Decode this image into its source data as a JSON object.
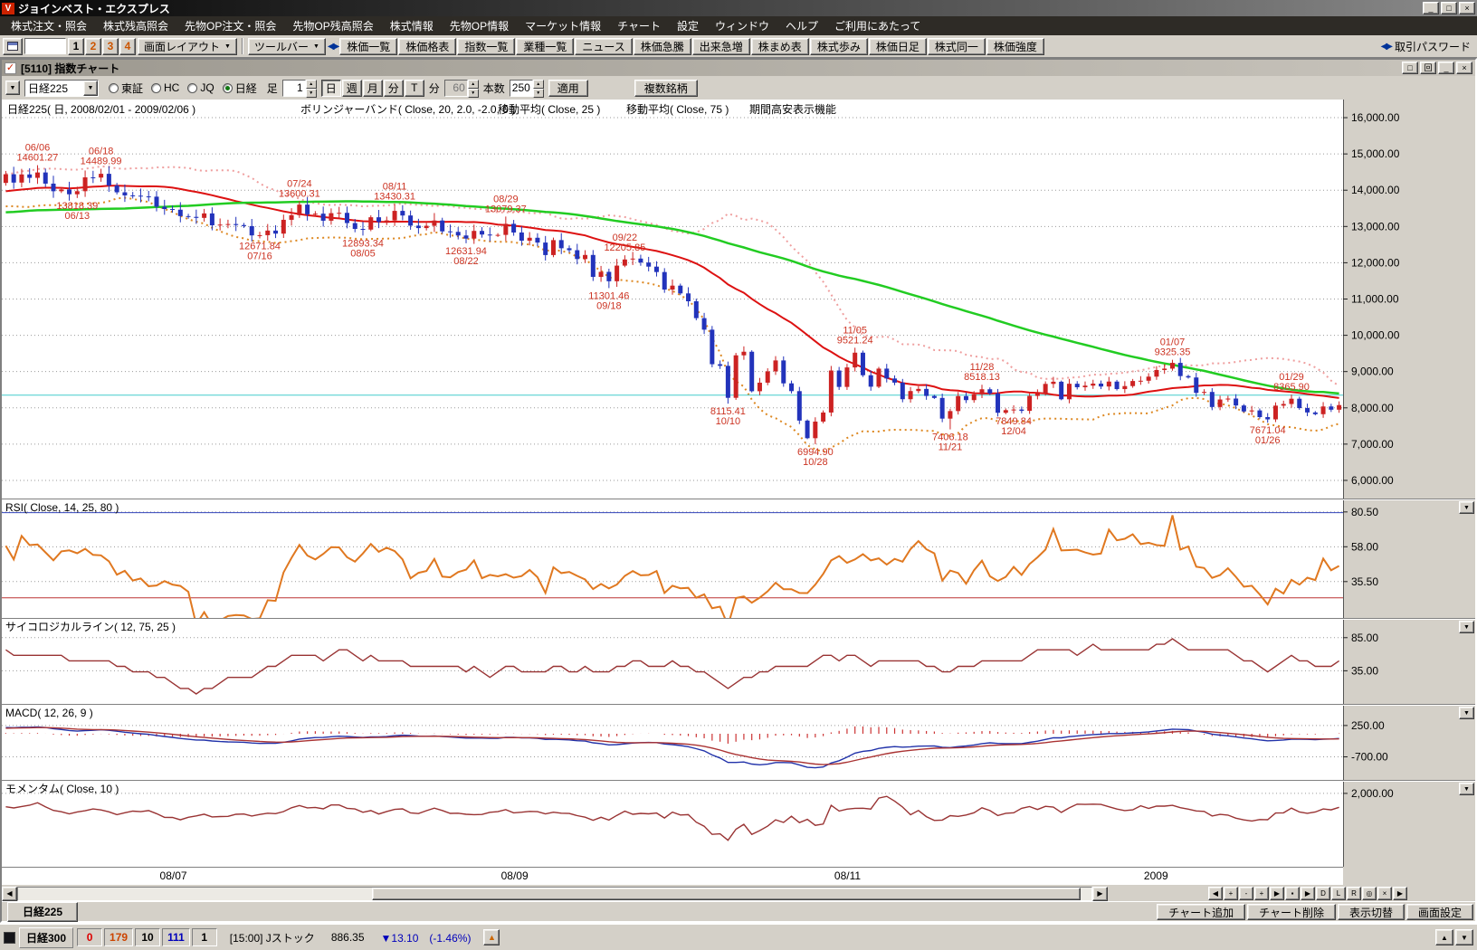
{
  "window": {
    "title": "ジョインベスト・エクスプレス",
    "buttons": [
      {
        "name": "minimize",
        "glyph": "_"
      },
      {
        "name": "maximize",
        "glyph": "□"
      },
      {
        "name": "close",
        "glyph": "×"
      }
    ]
  },
  "menu": {
    "items": [
      "株式注文・照会",
      "株式残高照会",
      "先物OP注文・照会",
      "先物OP残高照会",
      "株式情報",
      "先物OP情報",
      "マーケット情報",
      "チャート",
      "設定",
      "ウィンドウ",
      "ヘルプ",
      "ご利用にあたって"
    ]
  },
  "toolbar": {
    "layout_buttons": [
      {
        "label": "1",
        "color": "#000000"
      },
      {
        "label": "2",
        "color": "#cc5500"
      },
      {
        "label": "3",
        "color": "#cc5500"
      },
      {
        "label": "4",
        "color": "#cc5500"
      }
    ],
    "screen_layout": "画面レイアウト",
    "toolbar_menu": "ツールバー",
    "buttons": [
      {
        "label": "株価一覧",
        "name": "price-list-button"
      },
      {
        "label": "株価格表",
        "name": "price-board-button"
      },
      {
        "label": "指数一覧",
        "name": "index-list-button"
      },
      {
        "label": "業種一覧",
        "name": "sector-list-button"
      },
      {
        "label": "ニュース",
        "name": "news-button"
      },
      {
        "label": "株価急騰",
        "name": "price-surge-button"
      },
      {
        "label": "出来急増",
        "name": "volume-surge-button"
      },
      {
        "label": "株まめ表",
        "name": "stock-memo-button"
      },
      {
        "label": "株式歩み",
        "name": "tick-history-button"
      },
      {
        "label": "株価日足",
        "name": "daily-price-button"
      },
      {
        "label": "株式同一",
        "name": "same-stock-button"
      },
      {
        "label": "株価強度",
        "name": "price-strength-button"
      }
    ],
    "password_button": "取引パスワード"
  },
  "chart_window": {
    "title": "[5110] 指数チャート",
    "title_buttons": [
      {
        "name": "cascade",
        "glyph": "□"
      },
      {
        "name": "restore",
        "glyph": "回"
      },
      {
        "name": "minimize",
        "glyph": "_"
      },
      {
        "name": "close",
        "glyph": "×"
      }
    ],
    "controls": {
      "combo_value": "日経225",
      "markets": [
        {
          "label": "東証",
          "selected": false
        },
        {
          "label": "HC",
          "selected": false
        },
        {
          "label": "JQ",
          "selected": false
        },
        {
          "label": "日経",
          "selected": true
        }
      ],
      "bar_label": "足",
      "bar_value": "1",
      "period_buttons": [
        {
          "label": "日",
          "active": true
        },
        {
          "label": "週",
          "active": false
        },
        {
          "label": "月",
          "active": false
        },
        {
          "label": "分",
          "active": false
        },
        {
          "label": "T",
          "active": false
        }
      ],
      "minute_label": "分",
      "minute_value": "60",
      "count_label": "本数",
      "count_value": "250",
      "apply_button": "適用",
      "multi_button": "複数銘柄"
    },
    "header_items": [
      "日経225( 日, 2008/02/01 - 2009/02/06 )",
      "ボリンジャーバンド( Close, 20, 2.0, -2.0, 0 )",
      "移動平均( Close, 25 )",
      "移動平均( Close, 75 )",
      "期間高安表示機能"
    ],
    "tab": "日経225",
    "footer_buttons": [
      {
        "label": "チャート追加",
        "name": "chart-add-button"
      },
      {
        "label": "チャート削除",
        "name": "chart-delete-button"
      },
      {
        "label": "表示切替",
        "name": "display-toggle-button"
      },
      {
        "label": "画面設定",
        "name": "screen-settings-button"
      }
    ],
    "scroll_cluster": [
      {
        "glyph": "◀",
        "name": "scroll-first-button"
      },
      {
        "glyph": "+",
        "name": "zoom-in-button"
      },
      {
        "glyph": "-",
        "name": "zoom-out-button"
      },
      {
        "glyph": "+",
        "name": "zoom-reset-button"
      },
      {
        "glyph": "▶",
        "name": "scroll-last-button"
      },
      {
        "glyph": "▪",
        "name": "marker-tool-button"
      },
      {
        "glyph": "▶",
        "name": "play-button"
      },
      {
        "glyph": "D",
        "name": "mode-d-button"
      },
      {
        "glyph": "L",
        "name": "mode-l-button"
      },
      {
        "glyph": "R",
        "name": "mode-r-button"
      },
      {
        "glyph": "◎",
        "name": "zoom-tool-button"
      },
      {
        "glyph": "×",
        "name": "close-tool-button"
      },
      {
        "glyph": "▶",
        "name": "expand-button"
      }
    ]
  },
  "statusbar": {
    "index_name": "日経300",
    "cells": [
      {
        "text": "0",
        "color": "#dd0000"
      },
      {
        "text": "179",
        "color": "#cc4400"
      },
      {
        "text": "10",
        "color": "#000000"
      },
      {
        "text": "111",
        "color": "#0000bb"
      },
      {
        "text": "1",
        "color": "#000000"
      }
    ],
    "session": "[15:00] Jストック",
    "price": "886.35",
    "change": "▼13.10　(-1.46%)",
    "change_color": "#0000bb",
    "up_button_glyph": "▲",
    "right_buttons": [
      {
        "glyph": "▲",
        "name": "panel-up-button"
      },
      {
        "glyph": "▼",
        "name": "panel-down-button"
      }
    ]
  },
  "chart_data": {
    "type": "candlestick",
    "title": "日経225 日足 2008/02/01 - 2009/02/06",
    "y_ticks": [
      "16,000.00",
      "15,000.00",
      "14,000.00",
      "13,000.00",
      "12,000.00",
      "11,000.00",
      "10,000.00",
      "9,000.00",
      "8,000.00",
      "7,000.00",
      "6,000.00"
    ],
    "y_tick_values": [
      16000,
      15000,
      14000,
      13000,
      12000,
      11000,
      10000,
      9000,
      8000,
      7000,
      6000
    ],
    "y_range": [
      5500,
      16500
    ],
    "price_line": 8350,
    "x_labels": [
      {
        "label": "08/07",
        "at": "07/01"
      },
      {
        "label": "08/09",
        "at": "09/01"
      },
      {
        "label": "08/11",
        "at": "11/04"
      },
      {
        "label": "2009",
        "at": "01/05"
      }
    ],
    "overlays": {
      "bollinger_period": 20,
      "bollinger_k": 2,
      "ma_short": 25,
      "ma_long": 75
    },
    "pre_closes": [
      13500,
      13745,
      13859,
      13603,
      13207,
      13017,
      13622,
      13068,
      13021,
      13626,
      13757,
      13622,
      13688,
      13925,
      13500,
      13824,
      14031,
      13985,
      13926,
      13603,
      13703,
      12992,
      13051,
      12972,
      12782,
      13215,
      12532,
      12433,
      12861,
      12433,
      12241,
      11787,
      11964,
      12261,
      12480,
      12361,
      12604,
      12745,
      12525,
      12820,
      12656,
      12789,
      13250,
      13293,
      13146,
      13112,
      12945,
      13111,
      12917,
      13090,
      13323,
      13276,
      13476,
      13547,
      13696,
      13547,
      13579,
      13863,
      13849,
      13891,
      14049,
      13943,
      14102,
      14219,
      13655,
      13943,
      13953,
      14219,
      13690,
      13915,
      14042,
      13953,
      14012,
      13766,
      13603,
      13790,
      14013,
      14219,
      14338,
      14201
    ],
    "candles": [
      [
        "06/02",
        14440
      ],
      [
        "06/03",
        14210
      ],
      [
        "06/04",
        14435
      ],
      [
        "06/05",
        14341
      ],
      [
        "06/06",
        14489
      ],
      [
        "06/09",
        14181
      ],
      [
        "06/10",
        13972
      ],
      [
        "06/11",
        14021
      ],
      [
        "06/12",
        13888
      ],
      [
        "06/13",
        13973
      ],
      [
        "06/16",
        14354
      ],
      [
        "06/17",
        14348
      ],
      [
        "06/18",
        14452
      ],
      [
        "06/19",
        14130
      ],
      [
        "06/20",
        13942
      ],
      [
        "06/23",
        13857
      ],
      [
        "06/24",
        13849
      ],
      [
        "06/25",
        13829
      ],
      [
        "06/26",
        13822
      ],
      [
        "06/27",
        13544
      ],
      [
        "06/30",
        13481
      ],
      [
        "07/01",
        13463
      ],
      [
        "07/02",
        13286
      ],
      [
        "07/03",
        13265
      ],
      [
        "07/04",
        13237
      ],
      [
        "07/07",
        13360
      ],
      [
        "07/08",
        13033
      ],
      [
        "07/09",
        13052
      ],
      [
        "07/10",
        13067
      ],
      [
        "07/11",
        13039
      ],
      [
        "07/14",
        13010
      ],
      [
        "07/15",
        12754
      ],
      [
        "07/16",
        12760
      ],
      [
        "07/17",
        12887
      ],
      [
        "07/18",
        12803
      ],
      [
        "07/22",
        13184
      ],
      [
        "07/23",
        13312
      ],
      [
        "07/24",
        13603
      ],
      [
        "07/25",
        13334
      ],
      [
        "07/28",
        13353
      ],
      [
        "07/29",
        13159
      ],
      [
        "07/30",
        13367
      ],
      [
        "07/31",
        13376
      ],
      [
        "08/01",
        13094
      ],
      [
        "08/04",
        12933
      ],
      [
        "08/05",
        12914
      ],
      [
        "08/06",
        13254
      ],
      [
        "08/07",
        13124
      ],
      [
        "08/08",
        13168
      ],
      [
        "08/11",
        13430
      ],
      [
        "08/12",
        13303
      ],
      [
        "08/13",
        13023
      ],
      [
        "08/14",
        12956
      ],
      [
        "08/15",
        13019
      ],
      [
        "08/18",
        13165
      ],
      [
        "08/19",
        12865
      ],
      [
        "08/20",
        12851
      ],
      [
        "08/21",
        12752
      ],
      [
        "08/22",
        12666
      ],
      [
        "08/25",
        12878
      ],
      [
        "08/26",
        12778
      ],
      [
        "08/27",
        12752
      ],
      [
        "08/28",
        12768
      ],
      [
        "08/29",
        13073
      ],
      [
        "09/01",
        12834
      ],
      [
        "09/02",
        12609
      ],
      [
        "09/03",
        12689
      ],
      [
        "09/04",
        12557
      ],
      [
        "09/05",
        12212
      ],
      [
        "09/08",
        12624
      ],
      [
        "09/09",
        12400
      ],
      [
        "09/10",
        12346
      ],
      [
        "09/11",
        12102
      ],
      [
        "09/12",
        12215
      ],
      [
        "09/16",
        11610
      ],
      [
        "09/17",
        11749
      ],
      [
        "09/18",
        11490
      ],
      [
        "09/19",
        11921
      ],
      [
        "09/22",
        12090
      ],
      [
        "09/24",
        12115
      ],
      [
        "09/25",
        12006
      ],
      [
        "09/26",
        11893
      ],
      [
        "09/29",
        11744
      ],
      [
        "09/30",
        11260
      ],
      [
        "10/01",
        11369
      ],
      [
        "10/02",
        11155
      ],
      [
        "10/03",
        10938
      ],
      [
        "10/06",
        10473
      ],
      [
        "10/07",
        10155
      ],
      [
        "10/08",
        9203
      ],
      [
        "10/09",
        9158
      ],
      [
        "10/10",
        8276
      ],
      [
        "10/14",
        9448
      ],
      [
        "10/15",
        9547
      ],
      [
        "10/16",
        8458
      ],
      [
        "10/17",
        8694
      ],
      [
        "10/20",
        9006
      ],
      [
        "10/21",
        9307
      ],
      [
        "10/22",
        8675
      ],
      [
        "10/23",
        8461
      ],
      [
        "10/24",
        7649
      ],
      [
        "10/27",
        7163
      ],
      [
        "10/28",
        7621
      ],
      [
        "10/29",
        7871
      ],
      [
        "10/30",
        9029
      ],
      [
        "10/31",
        8577
      ],
      [
        "11/04",
        9114
      ],
      [
        "11/05",
        9521
      ],
      [
        "11/06",
        8899
      ],
      [
        "11/07",
        8583
      ],
      [
        "11/10",
        9081
      ],
      [
        "11/11",
        8809
      ],
      [
        "11/12",
        8695
      ],
      [
        "11/13",
        8238
      ],
      [
        "11/14",
        8463
      ],
      [
        "11/17",
        8522
      ],
      [
        "11/18",
        8328
      ],
      [
        "11/19",
        8273
      ],
      [
        "11/20",
        7703
      ],
      [
        "11/21",
        7911
      ],
      [
        "11/25",
        8324
      ],
      [
        "11/26",
        8213
      ],
      [
        "11/27",
        8373
      ],
      [
        "11/28",
        8512
      ],
      [
        "12/01",
        8397
      ],
      [
        "12/02",
        7864
      ],
      [
        "12/03",
        7937
      ],
      [
        "12/04",
        7954
      ],
      [
        "12/05",
        7917
      ],
      [
        "12/08",
        8329
      ],
      [
        "12/09",
        8395
      ],
      [
        "12/10",
        8660
      ],
      [
        "12/11",
        8720
      ],
      [
        "12/12",
        8236
      ],
      [
        "12/15",
        8664
      ],
      [
        "12/16",
        8568
      ],
      [
        "12/17",
        8612
      ],
      [
        "12/18",
        8668
      ],
      [
        "12/19",
        8588
      ],
      [
        "12/22",
        8724
      ],
      [
        "12/24",
        8517
      ],
      [
        "12/25",
        8600
      ],
      [
        "12/26",
        8740
      ],
      [
        "12/29",
        8747
      ],
      [
        "12/30",
        8860
      ],
      [
        "01/05",
        9043
      ],
      [
        "01/06",
        9081
      ],
      [
        "01/07",
        9240
      ],
      [
        "01/08",
        8876
      ],
      [
        "01/09",
        8837
      ],
      [
        "01/13",
        8413
      ],
      [
        "01/14",
        8438
      ],
      [
        "01/15",
        8023
      ],
      [
        "01/16",
        8230
      ],
      [
        "01/19",
        8256
      ],
      [
        "01/20",
        8065
      ],
      [
        "01/21",
        7901
      ],
      [
        "01/22",
        7929
      ],
      [
        "01/23",
        7745
      ],
      [
        "01/26",
        7682
      ],
      [
        "01/27",
        8061
      ],
      [
        "01/28",
        8106
      ],
      [
        "01/29",
        8251
      ],
      [
        "01/30",
        7994
      ],
      [
        "02/02",
        7873
      ],
      [
        "02/03",
        7825
      ],
      [
        "02/04",
        8038
      ],
      [
        "02/05",
        7949
      ],
      [
        "02/06",
        8076
      ]
    ],
    "annotations": [
      {
        "date": "06/06",
        "value": "14601.27",
        "kind": "high"
      },
      {
        "date": "06/13",
        "value": "13818.39",
        "kind": "low"
      },
      {
        "date": "06/18",
        "value": "14489.99",
        "kind": "high"
      },
      {
        "date": "07/16",
        "value": "12671.84",
        "kind": "low"
      },
      {
        "date": "07/24",
        "value": "13600.31",
        "kind": "high"
      },
      {
        "date": "08/05",
        "value": "12893.34",
        "kind": "low"
      },
      {
        "date": "08/11",
        "value": "13430.31",
        "kind": "high"
      },
      {
        "date": "08/22",
        "value": "12631.94",
        "kind": "low"
      },
      {
        "date": "08/29",
        "value": "13079.37",
        "kind": "high"
      },
      {
        "date": "09/18",
        "value": "11301.46",
        "kind": "low"
      },
      {
        "date": "09/22",
        "value": "12205.85",
        "kind": "high"
      },
      {
        "date": "10/10",
        "value": "8115.41",
        "kind": "low"
      },
      {
        "date": "10/28",
        "value": "6994.90",
        "kind": "low"
      },
      {
        "date": "11/05",
        "value": "9521.24",
        "kind": "high"
      },
      {
        "date": "11/21",
        "value": "7406.18",
        "kind": "low"
      },
      {
        "date": "11/28",
        "value": "8518.13",
        "kind": "high"
      },
      {
        "date": "12/04",
        "value": "7849.84",
        "kind": "low"
      },
      {
        "date": "01/07",
        "value": "9325.35",
        "kind": "high"
      },
      {
        "date": "01/26",
        "value": "7671.04",
        "kind": "low"
      },
      {
        "date": "01/29",
        "value": "8365.90",
        "kind": "high"
      }
    ],
    "panels": {
      "rsi": {
        "label": "RSI( Close, 14, 25, 80 )",
        "period": 14,
        "lower": 25,
        "upper": 80,
        "ticks": [
          {
            "v": 80.5,
            "t": "80.50"
          },
          {
            "v": 58,
            "t": "58.00"
          },
          {
            "v": 35.5,
            "t": "35.50"
          }
        ],
        "range": [
          12,
          88
        ]
      },
      "psych": {
        "label": "サイコロジカルライン( 12, 75, 25 )",
        "period": 12,
        "ticks": [
          {
            "v": 85,
            "t": "85.00"
          },
          {
            "v": 35,
            "t": "35.00"
          }
        ],
        "range": [
          -15,
          112
        ]
      },
      "macd": {
        "label": "MACD( 12, 26, 9 )",
        "fast": 12,
        "slow": 26,
        "signal": 9,
        "ticks": [
          {
            "v": 250,
            "t": "250.00"
          },
          {
            "v": -700,
            "t": "-700.00"
          }
        ],
        "range": [
          -1400,
          850
        ]
      },
      "momentum": {
        "label": "モメンタム( Close, 10 )",
        "period": 10,
        "ticks": [
          {
            "v": 2000,
            "t": "2,000.00"
          }
        ],
        "range": [
          -6800,
          3400
        ]
      }
    },
    "colors": {
      "ma25": "#dd1111",
      "ma75": "#22cc22",
      "boll_upper": "#ef9f9f",
      "boll_lower": "#dd8822",
      "candle_up": "#cc2222",
      "candle_down": "#2233bb",
      "rsi": "#e07820",
      "rsi_upper_line": "#3344bb",
      "rsi_lower_line": "#bb3333",
      "psych": "#993333",
      "macd": "#2233aa",
      "macd_signal": "#aa3333",
      "macd_hist": "#cc3333",
      "momentum": "#993333",
      "price_line": "#44cccc",
      "annotation": "#cc3322"
    }
  }
}
